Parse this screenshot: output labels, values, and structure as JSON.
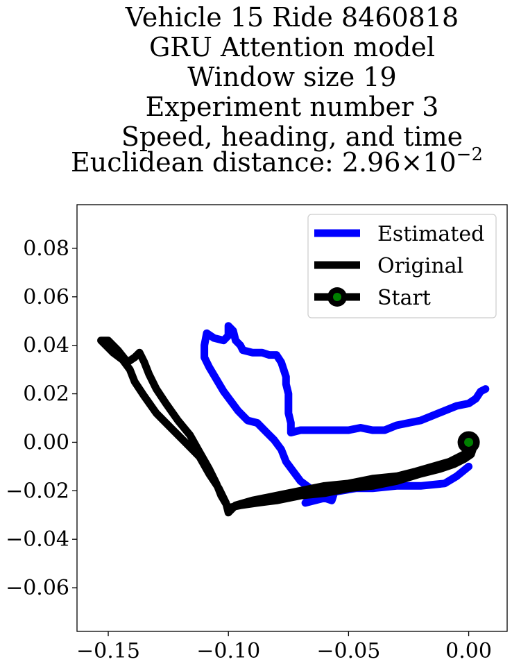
{
  "chart_data": {
    "type": "line",
    "title_lines": [
      "Vehicle 15 Ride 8460818",
      "GRU Attention model",
      "Window size 19",
      "Experiment number 3",
      "Speed, heading, and time",
      "Euclidean distance: 2.96×10"
    ],
    "title_exponent": "−2",
    "xlabel": "",
    "ylabel": "",
    "xlim": [
      -0.163,
      0.016
    ],
    "ylim": [
      -0.078,
      0.098
    ],
    "x_ticks": [
      -0.15,
      -0.1,
      -0.05,
      0.0
    ],
    "x_tick_labels": [
      "−0.15",
      "−0.10",
      "−0.05",
      "0.00"
    ],
    "y_ticks": [
      0.08,
      0.06,
      0.04,
      0.02,
      0.0,
      -0.02,
      -0.04,
      -0.06
    ],
    "y_tick_labels": [
      "0.08",
      "0.06",
      "0.04",
      "0.02",
      "0.00",
      "−0.02",
      "−0.04",
      "−0.06"
    ],
    "grid": false,
    "legend_position": "top-right",
    "legend": [
      "Estimated",
      "Original",
      "Start"
    ],
    "series": [
      {
        "name": "Estimated",
        "color": "#0000ff",
        "points": [
          [
            0.0,
            -0.01
          ],
          [
            -0.005,
            -0.014
          ],
          [
            -0.01,
            -0.017
          ],
          [
            -0.02,
            -0.018
          ],
          [
            -0.03,
            -0.018
          ],
          [
            -0.04,
            -0.019
          ],
          [
            -0.047,
            -0.019
          ],
          [
            -0.053,
            -0.02
          ],
          [
            -0.059,
            -0.021
          ],
          [
            -0.064,
            -0.022
          ],
          [
            -0.067,
            -0.024
          ],
          [
            -0.068,
            -0.025
          ],
          [
            -0.064,
            -0.024
          ],
          [
            -0.06,
            -0.023
          ],
          [
            -0.057,
            -0.024
          ],
          [
            -0.056,
            -0.021
          ],
          [
            -0.06,
            -0.02
          ],
          [
            -0.066,
            -0.019
          ],
          [
            -0.07,
            -0.016
          ],
          [
            -0.073,
            -0.012
          ],
          [
            -0.076,
            -0.008
          ],
          [
            -0.078,
            -0.003
          ],
          [
            -0.081,
            0.001
          ],
          [
            -0.084,
            0.004
          ],
          [
            -0.088,
            0.008
          ],
          [
            -0.092,
            0.009
          ],
          [
            -0.096,
            0.013
          ],
          [
            -0.099,
            0.017
          ],
          [
            -0.102,
            0.021
          ],
          [
            -0.105,
            0.026
          ],
          [
            -0.108,
            0.031
          ],
          [
            -0.11,
            0.035
          ],
          [
            -0.11,
            0.04
          ],
          [
            -0.109,
            0.045
          ],
          [
            -0.106,
            0.043
          ],
          [
            -0.102,
            0.042
          ],
          [
            -0.1,
            0.044
          ],
          [
            -0.1,
            0.048
          ],
          [
            -0.098,
            0.046
          ],
          [
            -0.097,
            0.042
          ],
          [
            -0.095,
            0.04
          ],
          [
            -0.094,
            0.038
          ],
          [
            -0.09,
            0.037
          ],
          [
            -0.086,
            0.037
          ],
          [
            -0.083,
            0.036
          ],
          [
            -0.08,
            0.036
          ],
          [
            -0.078,
            0.033
          ],
          [
            -0.077,
            0.03
          ],
          [
            -0.076,
            0.027
          ],
          [
            -0.076,
            0.024
          ],
          [
            -0.075,
            0.02
          ],
          [
            -0.075,
            0.016
          ],
          [
            -0.075,
            0.012
          ],
          [
            -0.074,
            0.008
          ],
          [
            -0.074,
            0.004
          ],
          [
            -0.07,
            0.005
          ],
          [
            -0.065,
            0.005
          ],
          [
            -0.06,
            0.005
          ],
          [
            -0.055,
            0.005
          ],
          [
            -0.05,
            0.005
          ],
          [
            -0.045,
            0.006
          ],
          [
            -0.04,
            0.005
          ],
          [
            -0.035,
            0.005
          ],
          [
            -0.03,
            0.007
          ],
          [
            -0.025,
            0.008
          ],
          [
            -0.02,
            0.009
          ],
          [
            -0.015,
            0.011
          ],
          [
            -0.01,
            0.013
          ],
          [
            -0.005,
            0.015
          ],
          [
            0.0,
            0.016
          ],
          [
            0.003,
            0.018
          ],
          [
            0.005,
            0.021
          ],
          [
            0.007,
            0.022
          ]
        ]
      },
      {
        "name": "Original",
        "color": "#000000",
        "points": [
          [
            0.0,
            -0.004
          ],
          [
            -0.004,
            -0.006
          ],
          [
            -0.008,
            -0.008
          ],
          [
            -0.015,
            -0.01
          ],
          [
            -0.022,
            -0.012
          ],
          [
            -0.03,
            -0.014
          ],
          [
            -0.04,
            -0.015
          ],
          [
            -0.05,
            -0.017
          ],
          [
            -0.06,
            -0.018
          ],
          [
            -0.07,
            -0.02
          ],
          [
            -0.08,
            -0.022
          ],
          [
            -0.09,
            -0.024
          ],
          [
            -0.097,
            -0.026
          ],
          [
            -0.1,
            -0.029
          ],
          [
            -0.101,
            -0.025
          ],
          [
            -0.104,
            -0.019
          ],
          [
            -0.108,
            -0.013
          ],
          [
            -0.112,
            -0.006
          ],
          [
            -0.118,
            0.0
          ],
          [
            -0.124,
            0.006
          ],
          [
            -0.13,
            0.012
          ],
          [
            -0.135,
            0.019
          ],
          [
            -0.139,
            0.025
          ],
          [
            -0.141,
            0.03
          ],
          [
            -0.144,
            0.034
          ],
          [
            -0.148,
            0.037
          ],
          [
            -0.151,
            0.04
          ],
          [
            -0.153,
            0.042
          ],
          [
            -0.15,
            0.042
          ],
          [
            -0.146,
            0.038
          ],
          [
            -0.142,
            0.033
          ],
          [
            -0.139,
            0.035
          ],
          [
            -0.137,
            0.037
          ],
          [
            -0.135,
            0.033
          ],
          [
            -0.133,
            0.028
          ],
          [
            -0.13,
            0.022
          ],
          [
            -0.126,
            0.016
          ],
          [
            -0.121,
            0.009
          ],
          [
            -0.116,
            0.003
          ],
          [
            -0.112,
            -0.004
          ],
          [
            -0.108,
            -0.011
          ],
          [
            -0.105,
            -0.017
          ],
          [
            -0.103,
            -0.022
          ],
          [
            -0.1,
            -0.027
          ],
          [
            -0.095,
            -0.026
          ],
          [
            -0.088,
            -0.025
          ],
          [
            -0.08,
            -0.024
          ],
          [
            -0.07,
            -0.022
          ],
          [
            -0.06,
            -0.021
          ],
          [
            -0.05,
            -0.019
          ],
          [
            -0.04,
            -0.018
          ],
          [
            -0.03,
            -0.016
          ],
          [
            -0.02,
            -0.013
          ],
          [
            -0.012,
            -0.011
          ],
          [
            -0.006,
            -0.009
          ],
          [
            -0.002,
            -0.007
          ],
          [
            0.001,
            -0.005
          ],
          [
            0.002,
            -0.002
          ]
        ]
      }
    ],
    "start_point": {
      "x": 0.0,
      "y": 0.0,
      "outer_color": "#000000",
      "inner_color": "#008000"
    }
  }
}
